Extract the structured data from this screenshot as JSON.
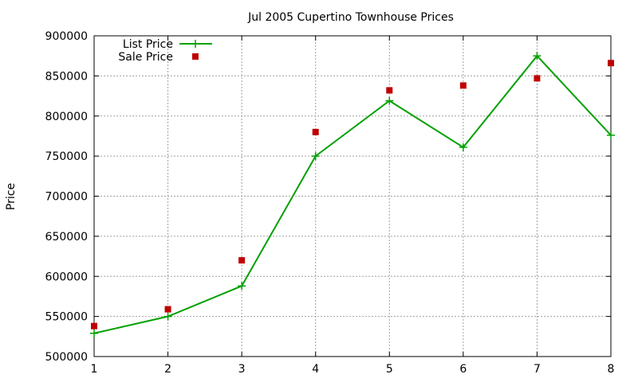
{
  "chart_data": {
    "type": "line",
    "title": "Jul 2005 Cupertino Townhouse Prices",
    "xlabel": "",
    "ylabel": "Price",
    "x": [
      1,
      2,
      3,
      4,
      5,
      6,
      7,
      8
    ],
    "xlim": [
      1,
      8
    ],
    "ylim": [
      500000,
      900000
    ],
    "yticks": [
      500000,
      550000,
      600000,
      650000,
      700000,
      750000,
      800000,
      850000,
      900000
    ],
    "xticks": [
      1,
      2,
      3,
      4,
      5,
      6,
      7,
      8
    ],
    "grid": true,
    "legend_position": "top-left",
    "series": [
      {
        "name": "List Price",
        "style": "linespoints",
        "marker": "plus",
        "color": "#00a000",
        "values": [
          529000,
          550000,
          588000,
          750000,
          819000,
          761000,
          875000,
          776000
        ]
      },
      {
        "name": "Sale Price",
        "style": "points",
        "marker": "square",
        "color": "#c00000",
        "values": [
          538000,
          559000,
          620000,
          780000,
          832000,
          838000,
          847000,
          866000
        ]
      }
    ]
  }
}
